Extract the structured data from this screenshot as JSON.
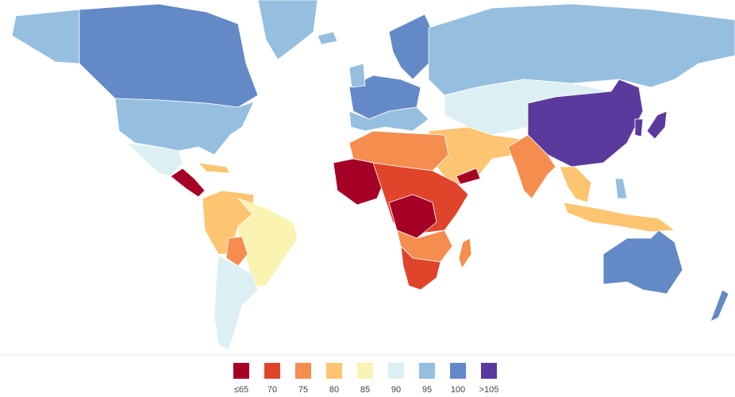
{
  "legend": {
    "items": [
      {
        "label": "≤65",
        "color": "#a50026"
      },
      {
        "label": "70",
        "color": "#e0442b"
      },
      {
        "label": "75",
        "color": "#f58d4f"
      },
      {
        "label": "80",
        "color": "#fdc471"
      },
      {
        "label": "85",
        "color": "#fbf3b1"
      },
      {
        "label": "90",
        "color": "#dcf0f3"
      },
      {
        "label": "95",
        "color": "#96bfdf"
      },
      {
        "label": "100",
        "color": "#6389c7"
      },
      {
        "label": ">105",
        "color": "#5b3a9e"
      }
    ]
  }
}
